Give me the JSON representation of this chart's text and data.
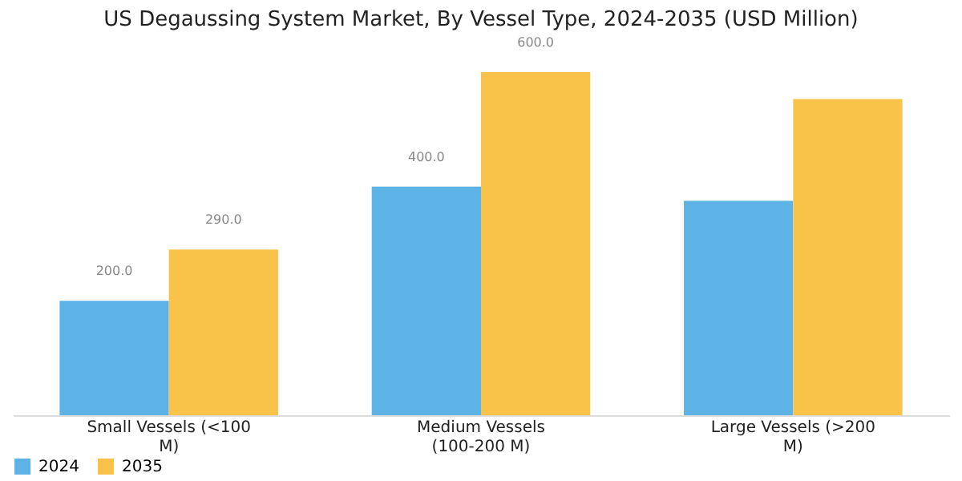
{
  "chart_data": {
    "type": "bar",
    "title": "US Degaussing System Market, By Vessel Type, 2024-2035 (USD Million)",
    "categories": [
      "Small Vessels (<100\nM)",
      "Medium Vessels\n(100-200 M)",
      "Large Vessels (>200\nM)"
    ],
    "series": [
      {
        "name": "2024",
        "color": "#5db3e6",
        "values": [
          200,
          400,
          375
        ],
        "value_labels": [
          "200.0",
          "400.0",
          null
        ]
      },
      {
        "name": "2035",
        "color": "#f9c34a",
        "values": [
          290,
          600,
          553
        ],
        "value_labels": [
          "290.0",
          "600.0",
          null
        ]
      }
    ],
    "grid": false,
    "legend": "bottom",
    "tick_labels": "x"
  }
}
